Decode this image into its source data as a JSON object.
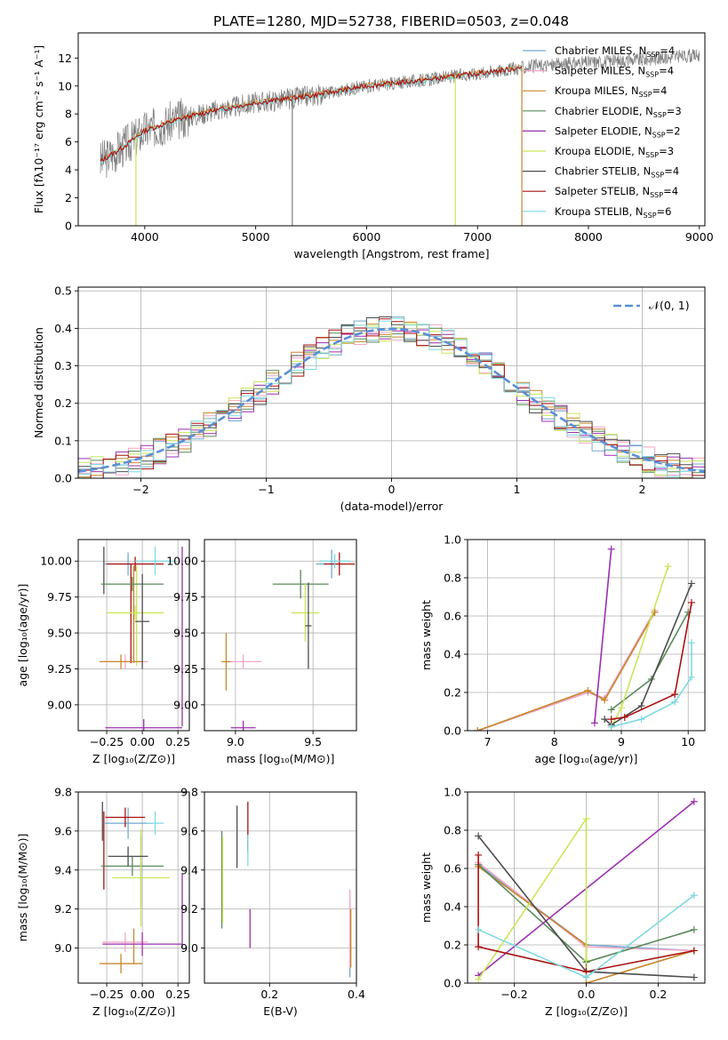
{
  "title": "PLATE=1280, MJD=52738, FIBERID=0503, z=0.048",
  "colors": {
    "Chabrier MILES": "#74a9cf",
    "Salpeter MILES": "#f4a6c8",
    "Kroupa MILES": "#c8862b",
    "Chabrier ELODIE": "#5a8a5a",
    "Salpeter ELODIE": "#9b2fb0",
    "Kroupa ELODIE": "#c8e65a",
    "Chabrier STELIB": "#4d4d4d",
    "Salpeter STELIB": "#aa1111",
    "Kroupa STELIB": "#7fd8e0",
    "data": "#808080",
    "normal": "#5b8fd6"
  },
  "chart_data": [
    {
      "type": "line",
      "xlabel": "wavelength [Angstrom, rest frame]",
      "ylabel": "Flux [fλ10⁻¹⁷ erg cm⁻² s⁻¹ A⁻¹]",
      "xlim": [
        3400,
        9050
      ],
      "ylim": [
        0,
        13.8
      ],
      "xticks": [
        4000,
        5000,
        6000,
        7000,
        8000,
        9000
      ],
      "yticks": [
        0,
        2,
        4,
        6,
        8,
        10,
        12
      ],
      "legend_position": "right",
      "legend": [
        {
          "model": "Chabrier MILES",
          "label": "Chabrier MILES, N",
          "sub": "SSP",
          "n": "=4"
        },
        {
          "model": "Salpeter MILES",
          "label": "Salpeter MILES, N",
          "sub": "SSP",
          "n": "=4"
        },
        {
          "model": "Kroupa MILES",
          "label": "Kroupa MILES, N",
          "sub": "SSP",
          "n": "=4"
        },
        {
          "model": "Chabrier ELODIE",
          "label": "Chabrier ELODIE, N",
          "sub": "SSP",
          "n": "=3"
        },
        {
          "model": "Salpeter ELODIE",
          "label": "Salpeter ELODIE, N",
          "sub": "SSP",
          "n": "=2"
        },
        {
          "model": "Kroupa ELODIE",
          "label": "Kroupa ELODIE, N",
          "sub": "SSP",
          "n": "=3"
        },
        {
          "model": "Chabrier STELIB",
          "label": "Chabrier STELIB, N",
          "sub": "SSP",
          "n": "=4"
        },
        {
          "model": "Salpeter STELIB",
          "label": "Salpeter STELIB, N",
          "sub": "SSP",
          "n": "=4"
        },
        {
          "model": "Kroupa STELIB",
          "label": "Kroupa STELIB, N",
          "sub": "SSP",
          "n": "=6"
        }
      ],
      "spectrum_range": [
        3600,
        9000
      ],
      "continuum": [
        [
          3600,
          4.6
        ],
        [
          3800,
          5.6
        ],
        [
          4000,
          6.8
        ],
        [
          4300,
          7.6
        ],
        [
          4600,
          8.2
        ],
        [
          5000,
          8.8
        ],
        [
          5500,
          9.3
        ],
        [
          6000,
          10.0
        ],
        [
          6500,
          10.4
        ],
        [
          7000,
          10.9
        ],
        [
          7500,
          11.4
        ],
        [
          8000,
          11.7
        ],
        [
          8500,
          11.9
        ],
        [
          9000,
          12.2
        ]
      ],
      "model_curves": [
        {
          "model": "Kroupa MILES",
          "end": 7400,
          "offset": 0.05
        },
        {
          "model": "Kroupa STELIB",
          "end": 7400,
          "offset": -0.05
        },
        {
          "model": "Salpeter STELIB",
          "end": 7400,
          "offset": 0.0
        }
      ],
      "spikes": [
        {
          "x": 3920,
          "model": "Kroupa ELODIE",
          "low": 0
        },
        {
          "x": 5330,
          "model": "data",
          "low": 0
        },
        {
          "x": 6800,
          "model": "Kroupa ELODIE",
          "low": 0
        },
        {
          "x": 7400,
          "model": "Kroupa MILES",
          "low": 0
        }
      ]
    },
    {
      "type": "histogram",
      "xlabel": "(data-model)/error",
      "ylabel": "Normed distribution",
      "xlim": [
        -2.5,
        2.5
      ],
      "ylim": [
        0,
        0.51
      ],
      "xticks": [
        -2,
        -1,
        0,
        1,
        2
      ],
      "xtick_labels": [
        "−2",
        "−1",
        "0",
        "1",
        "2"
      ],
      "yticks": [
        0.0,
        0.1,
        0.2,
        0.3,
        0.4,
        0.5
      ],
      "ytick_labels": [
        "0.0",
        "0.1",
        "0.2",
        "0.3",
        "0.4",
        "0.5"
      ],
      "grid": true,
      "legend_position": "top-right",
      "legend_label": "𝒩(0, 1)",
      "bin_width": 0.1,
      "series": [
        {
          "model": "Chabrier MILES",
          "seed": 1
        },
        {
          "model": "Salpeter MILES",
          "seed": 2
        },
        {
          "model": "Kroupa MILES",
          "seed": 3
        },
        {
          "model": "Chabrier ELODIE",
          "seed": 4
        },
        {
          "model": "Salpeter ELODIE",
          "seed": 5
        },
        {
          "model": "Kroupa ELODIE",
          "seed": 6
        },
        {
          "model": "Chabrier STELIB",
          "seed": 7
        },
        {
          "model": "Salpeter STELIB",
          "seed": 8
        },
        {
          "model": "Kroupa STELIB",
          "seed": 9
        }
      ]
    },
    {
      "type": "errorbar",
      "xlabel": "Z [log₁₀(Z/Z⊙)]",
      "ylabel": "age  [log₁₀(age/yr)]",
      "xlim": [
        -0.45,
        0.33
      ],
      "ylim": [
        8.82,
        10.15
      ],
      "xticks": [
        -0.25,
        0.0,
        0.25
      ],
      "xtick_labels": [
        "−0.25",
        "0.00",
        "0.25"
      ],
      "yticks": [
        9.0,
        9.25,
        9.5,
        9.75,
        10.0
      ],
      "ytick_labels": [
        "9.00",
        "9.25",
        "9.50",
        "9.75",
        "10.00"
      ],
      "grid": true,
      "points": [
        {
          "model": "Chabrier MILES",
          "x": -0.1,
          "xerr": 0.17,
          "y": 9.98,
          "yerr": 0.08
        },
        {
          "model": "Salpeter MILES",
          "x": -0.12,
          "xerr": 0.16,
          "y": 9.3,
          "yerr": 0.05
        },
        {
          "model": "Kroupa MILES",
          "x": -0.15,
          "xerr": 0.15,
          "y": 9.3,
          "yerr": 0.05
        },
        {
          "model": "Chabrier ELODIE",
          "x": -0.07,
          "xerr": 0.22,
          "y": 9.84,
          "yerr": 0.05
        },
        {
          "model": "Salpeter ELODIE",
          "x": 0.01,
          "xerr": 0.27,
          "y": 8.84,
          "yerr": 0.06
        },
        {
          "model": "Kroupa ELODIE",
          "x": -0.05,
          "xerr": 0.2,
          "y": 9.64,
          "yerr": 0.05
        },
        {
          "model": "Chabrier STELIB",
          "x": 0.0,
          "xerr": 0.05,
          "y": 9.58,
          "yerr": 0.33
        },
        {
          "model": "Salpeter STELIB",
          "x": -0.05,
          "xerr": 0.2,
          "y": 9.98,
          "yerr": 0.05
        },
        {
          "model": "Kroupa STELIB",
          "x": 0.09,
          "xerr": 0.14,
          "y": 10.0,
          "yerr": 0.1
        }
      ],
      "vbars": [
        {
          "model": "Salpeter ELODIE",
          "x": 0.28,
          "y0": 8.85,
          "y1": 10.1
        },
        {
          "model": "Salpeter STELIB",
          "x": -0.08,
          "y0": 9.29,
          "y1": 9.98
        },
        {
          "model": "Kroupa MILES",
          "x": -0.06,
          "y0": 9.29,
          "y1": 9.97
        },
        {
          "model": "Kroupa ELODIE",
          "x": -0.04,
          "y0": 9.27,
          "y1": 9.97
        },
        {
          "model": "Chabrier STELIB",
          "x": -0.27,
          "y0": 9.77,
          "y1": 10.1
        }
      ]
    },
    {
      "type": "errorbar",
      "xlabel": "mass [log₁₀(M/M⊙)]",
      "ylabel": "",
      "xlim": [
        8.8,
        9.78
      ],
      "ylim": [
        8.82,
        10.15
      ],
      "xticks": [
        9.0,
        9.5
      ],
      "xtick_labels": [
        "9.0",
        "9.5"
      ],
      "yticks": [
        9.0,
        9.25,
        9.5,
        9.75,
        10.0
      ],
      "ytick_labels": [
        "9.00",
        "9.25",
        "9.50",
        "9.75",
        "10.00"
      ],
      "grid": true,
      "points": [
        {
          "model": "Chabrier MILES",
          "x": 9.62,
          "xerr": 0.1,
          "y": 9.98,
          "yerr": 0.1
        },
        {
          "model": "Salpeter MILES",
          "x": 9.05,
          "xerr": 0.12,
          "y": 9.3,
          "yerr": 0.05
        },
        {
          "model": "Kroupa MILES",
          "x": 8.94,
          "xerr": 0.03,
          "y": 9.3,
          "yerr": 0.2
        },
        {
          "model": "Chabrier ELODIE",
          "x": 9.42,
          "xerr": 0.18,
          "y": 9.84,
          "yerr": 0.1
        },
        {
          "model": "Salpeter ELODIE",
          "x": 9.05,
          "xerr": 0.08,
          "y": 8.84,
          "yerr": 0.05
        },
        {
          "model": "Kroupa ELODIE",
          "x": 9.45,
          "xerr": 0.09,
          "y": 9.64,
          "yerr": 0.2
        },
        {
          "model": "Chabrier STELIB",
          "x": 9.47,
          "xerr": 0.02,
          "y": 9.55,
          "yerr": 0.3
        },
        {
          "model": "Salpeter STELIB",
          "x": 9.67,
          "xerr": 0.1,
          "y": 9.98,
          "yerr": 0.08
        },
        {
          "model": "Kroupa STELIB",
          "x": 9.64,
          "xerr": 0.1,
          "y": 10.0,
          "yerr": 0.05
        }
      ]
    },
    {
      "type": "line",
      "xlabel": "age  [log₁₀(age/yr)]",
      "ylabel": "mass weight",
      "xlim": [
        6.7,
        10.25
      ],
      "ylim": [
        0,
        1.0
      ],
      "xticks": [
        7,
        8,
        9,
        10
      ],
      "xtick_labels": [
        "7",
        "8",
        "9",
        "10"
      ],
      "yticks": [
        0.0,
        0.2,
        0.4,
        0.6,
        0.8,
        1.0
      ],
      "ytick_labels": [
        "0.0",
        "0.2",
        "0.4",
        "0.6",
        "0.8",
        "1.0"
      ],
      "grid": true,
      "series": [
        {
          "model": "Chabrier MILES",
          "x": [
            6.85,
            8.5,
            8.75,
            9.5
          ],
          "y": [
            0.0,
            0.2,
            0.17,
            0.62
          ]
        },
        {
          "model": "Salpeter MILES",
          "x": [
            6.85,
            8.5,
            8.75,
            9.5
          ],
          "y": [
            0.0,
            0.2,
            0.17,
            0.63
          ]
        },
        {
          "model": "Kroupa MILES",
          "x": [
            6.85,
            8.5,
            8.75,
            9.5
          ],
          "y": [
            0.0,
            0.21,
            0.16,
            0.62
          ]
        },
        {
          "model": "Chabrier ELODIE",
          "x": [
            8.85,
            9.45,
            10.0
          ],
          "y": [
            0.11,
            0.27,
            0.62
          ]
        },
        {
          "model": "Salpeter ELODIE",
          "x": [
            8.6,
            8.85
          ],
          "y": [
            0.04,
            0.95
          ]
        },
        {
          "model": "Kroupa ELODIE",
          "x": [
            8.85,
            9.0,
            9.7
          ],
          "y": [
            0.02,
            0.12,
            0.86
          ]
        },
        {
          "model": "Chabrier STELIB",
          "x": [
            8.75,
            8.85,
            9.3,
            10.05
          ],
          "y": [
            0.06,
            0.03,
            0.13,
            0.77
          ]
        },
        {
          "model": "Salpeter STELIB",
          "x": [
            8.85,
            9.05,
            9.8,
            10.05
          ],
          "y": [
            0.06,
            0.07,
            0.19,
            0.67
          ]
        },
        {
          "model": "Kroupa STELIB",
          "x": [
            8.85,
            9.3,
            9.8,
            10.05,
            10.05
          ],
          "y": [
            0.02,
            0.06,
            0.15,
            0.28,
            0.46
          ]
        }
      ]
    },
    {
      "type": "errorbar",
      "xlabel": "Z [log₁₀(Z/Z⊙)]",
      "ylabel": "mass [log₁₀(M/M⊙)]",
      "xlim": [
        -0.45,
        0.33
      ],
      "ylim": [
        8.82,
        9.8
      ],
      "xticks": [
        -0.25,
        0.0,
        0.25
      ],
      "xtick_labels": [
        "−0.25",
        "0.00",
        "0.25"
      ],
      "yticks": [
        9.0,
        9.2,
        9.4,
        9.6,
        9.8
      ],
      "ytick_labels": [
        "9.0",
        "9.2",
        "9.4",
        "9.6",
        "9.8"
      ],
      "grid": true,
      "points": [
        {
          "model": "Chabrier MILES",
          "x": -0.1,
          "xerr": 0.17,
          "y": 9.64,
          "yerr": 0.08
        },
        {
          "model": "Salpeter MILES",
          "x": -0.12,
          "xerr": 0.16,
          "y": 9.03,
          "yerr": 0.05
        },
        {
          "model": "Kroupa MILES",
          "x": -0.15,
          "xerr": 0.15,
          "y": 8.92,
          "yerr": 0.05
        },
        {
          "model": "Chabrier ELODIE",
          "x": -0.07,
          "xerr": 0.22,
          "y": 9.42,
          "yerr": 0.05
        },
        {
          "model": "Salpeter ELODIE",
          "x": 0.0,
          "xerr": 0.28,
          "y": 9.02,
          "yerr": 0.06
        },
        {
          "model": "Kroupa ELODIE",
          "x": -0.01,
          "xerr": 0.2,
          "y": 9.36,
          "yerr": 0.25
        },
        {
          "model": "Chabrier STELIB",
          "x": -0.1,
          "xerr": 0.14,
          "y": 9.47,
          "yerr": 0.05
        },
        {
          "model": "Salpeter STELIB",
          "x": -0.12,
          "xerr": 0.14,
          "y": 9.67,
          "yerr": 0.05
        },
        {
          "model": "Kroupa STELIB",
          "x": 0.09,
          "xerr": 0.06,
          "y": 9.64,
          "yerr": 0.06
        }
      ],
      "vbars": [
        {
          "model": "Salpeter ELODIE",
          "x": 0.28,
          "y0": 9.0,
          "y1": 9.38
        },
        {
          "model": "Chabrier STELIB",
          "x": -0.28,
          "y0": 9.55,
          "y1": 9.75
        },
        {
          "model": "Salpeter STELIB",
          "x": -0.27,
          "y0": 9.3,
          "y1": 9.7
        },
        {
          "model": "Kroupa MILES",
          "x": -0.06,
          "y0": 8.92,
          "y1": 9.1
        },
        {
          "model": "Chabrier ELODIE",
          "x": -0.01,
          "y0": 9.2,
          "y1": 9.58
        }
      ]
    },
    {
      "type": "errorbar",
      "xlabel": "E(B-V)",
      "ylabel": "",
      "xlim": [
        0.05,
        0.4
      ],
      "ylim": [
        8.82,
        9.8
      ],
      "xticks": [
        0.2,
        0.4
      ],
      "xtick_labels": [
        "0.2",
        "0.4"
      ],
      "yticks": [
        9.0,
        9.2,
        9.4,
        9.6,
        9.8
      ],
      "ytick_labels": [
        "9.0",
        "9.2",
        "9.4",
        "9.6",
        "9.8"
      ],
      "grid": true,
      "points": [
        {
          "model": "Chabrier MILES",
          "x": 0.385,
          "xerr": 0.0,
          "y": 9.05,
          "yerr": 0.2
        },
        {
          "model": "Salpeter MILES",
          "x": 0.385,
          "xerr": 0.0,
          "y": 9.1,
          "yerr": 0.2
        },
        {
          "model": "Kroupa MILES",
          "x": 0.387,
          "xerr": 0.0,
          "y": 9.05,
          "yerr": 0.15
        },
        {
          "model": "Chabrier ELODIE",
          "x": 0.09,
          "xerr": 0.0,
          "y": 9.35,
          "yerr": 0.25
        },
        {
          "model": "Salpeter ELODIE",
          "x": 0.155,
          "xerr": 0.0,
          "y": 9.1,
          "yerr": 0.1
        },
        {
          "model": "Kroupa ELODIE",
          "x": 0.092,
          "xerr": 0.0,
          "y": 9.35,
          "yerr": 0.22
        },
        {
          "model": "Chabrier STELIB",
          "x": 0.125,
          "xerr": 0.0,
          "y": 9.57,
          "yerr": 0.16
        },
        {
          "model": "Salpeter STELIB",
          "x": 0.15,
          "xerr": 0.0,
          "y": 9.62,
          "yerr": 0.13
        },
        {
          "model": "Kroupa STELIB",
          "x": 0.15,
          "xerr": 0.0,
          "y": 9.5,
          "yerr": 0.08
        }
      ]
    },
    {
      "type": "line",
      "xlabel": "Z [log₁₀(Z/Z⊙)]",
      "ylabel": "mass weight",
      "xlim": [
        -0.33,
        0.33
      ],
      "ylim": [
        0,
        1.0
      ],
      "xticks": [
        -0.2,
        0.0,
        0.2
      ],
      "xtick_labels": [
        "−0.2",
        "0.0",
        "0.2"
      ],
      "yticks": [
        0.0,
        0.2,
        0.4,
        0.6,
        0.8,
        1.0
      ],
      "ytick_labels": [
        "0.0",
        "0.2",
        "0.4",
        "0.6",
        "0.8",
        "1.0"
      ],
      "grid": true,
      "series": [
        {
          "model": "Chabrier MILES",
          "x": [
            -0.3,
            0.0,
            0.3
          ],
          "y": [
            0.62,
            0.2,
            0.17
          ]
        },
        {
          "model": "Salpeter MILES",
          "x": [
            -0.3,
            0.0,
            0.3
          ],
          "y": [
            0.63,
            0.19,
            0.17
          ]
        },
        {
          "model": "Kroupa MILES",
          "x": [
            -0.3,
            0.0,
            0.0,
            0.3
          ],
          "y": [
            0.61,
            0.2,
            0.0,
            0.17
          ]
        },
        {
          "model": "Chabrier ELODIE",
          "x": [
            -0.3,
            0.0,
            0.3
          ],
          "y": [
            0.62,
            0.11,
            0.28
          ]
        },
        {
          "model": "Salpeter ELODIE",
          "x": [
            -0.3,
            0.3
          ],
          "y": [
            0.04,
            0.95
          ]
        },
        {
          "model": "Kroupa ELODIE",
          "x": [
            -0.3,
            0.0,
            0.0
          ],
          "y": [
            0.02,
            0.86,
            0.12
          ]
        },
        {
          "model": "Chabrier STELIB",
          "x": [
            -0.3,
            0.0,
            0.3
          ],
          "y": [
            0.77,
            0.06,
            0.03
          ]
        },
        {
          "model": "Salpeter STELIB",
          "x": [
            -0.3,
            -0.3,
            0.0,
            0.3
          ],
          "y": [
            0.67,
            0.19,
            0.06,
            0.17
          ]
        },
        {
          "model": "Kroupa STELIB",
          "x": [
            -0.3,
            0.0,
            0.3
          ],
          "y": [
            0.28,
            0.03,
            0.46
          ]
        }
      ]
    }
  ]
}
